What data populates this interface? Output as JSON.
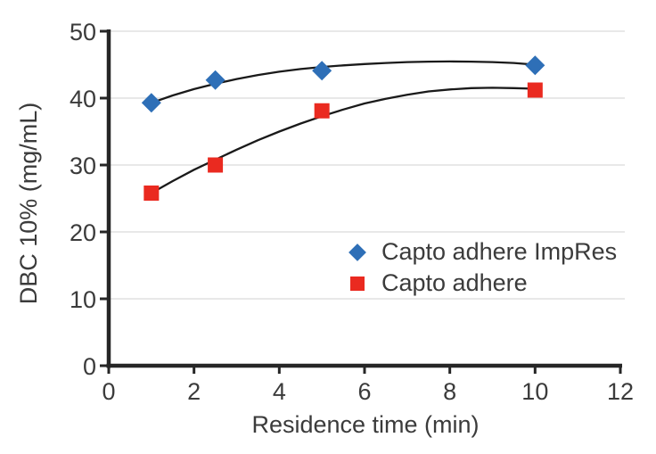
{
  "colors": {
    "background": "#ffffff",
    "axis": "#262626",
    "grid": "#dadada",
    "text": "#3b3b3b",
    "trendline": "#1a1a1a",
    "series_blue": "#2e6fb7",
    "series_red": "#ea2a20"
  },
  "chart_data": {
    "type": "scatter",
    "title": "",
    "xlabel": "Residence time (min)",
    "ylabel": "DBC 10% (mg/mL)",
    "xlim": [
      0,
      12
    ],
    "ylim": [
      0,
      50
    ],
    "x_ticks": [
      0,
      2,
      4,
      6,
      8,
      10,
      12
    ],
    "y_ticks": [
      0,
      10,
      20,
      30,
      40,
      50
    ],
    "grid": "horizontal-only",
    "legend_position": "inside-center-right",
    "series": [
      {
        "name": "Capto adhere ImpRes",
        "marker": "diamond",
        "color": "#2e6fb7",
        "x": [
          1,
          2.5,
          5,
          10
        ],
        "y": [
          39.3,
          42.7,
          44.1,
          44.9
        ],
        "trend_x": [
          1,
          1.5,
          2,
          2.5,
          3,
          3.5,
          4,
          4.5,
          5,
          5.5,
          6,
          6.5,
          7,
          7.5,
          8,
          8.5,
          9,
          9.5,
          10
        ],
        "trend_y": [
          39.3,
          40.4,
          41.35,
          42.15,
          42.85,
          43.45,
          43.95,
          44.35,
          44.65,
          44.9,
          45.1,
          45.25,
          45.38,
          45.45,
          45.48,
          45.45,
          45.38,
          45.25,
          45.0
        ]
      },
      {
        "name": "Capto adhere",
        "marker": "square",
        "color": "#ea2a20",
        "x": [
          1,
          2.5,
          5,
          10
        ],
        "y": [
          25.8,
          30.0,
          38.1,
          41.2
        ],
        "trend_x": [
          1,
          1.5,
          2,
          2.5,
          3,
          3.5,
          4,
          4.5,
          5,
          5.5,
          6,
          6.5,
          7,
          7.5,
          8,
          8.5,
          9,
          9.5,
          10
        ],
        "trend_y": [
          25.8,
          27.6,
          29.3,
          30.8,
          32.3,
          33.7,
          35.0,
          36.2,
          37.3,
          38.3,
          39.2,
          39.9,
          40.5,
          41.0,
          41.3,
          41.5,
          41.55,
          41.5,
          41.4
        ]
      }
    ]
  }
}
